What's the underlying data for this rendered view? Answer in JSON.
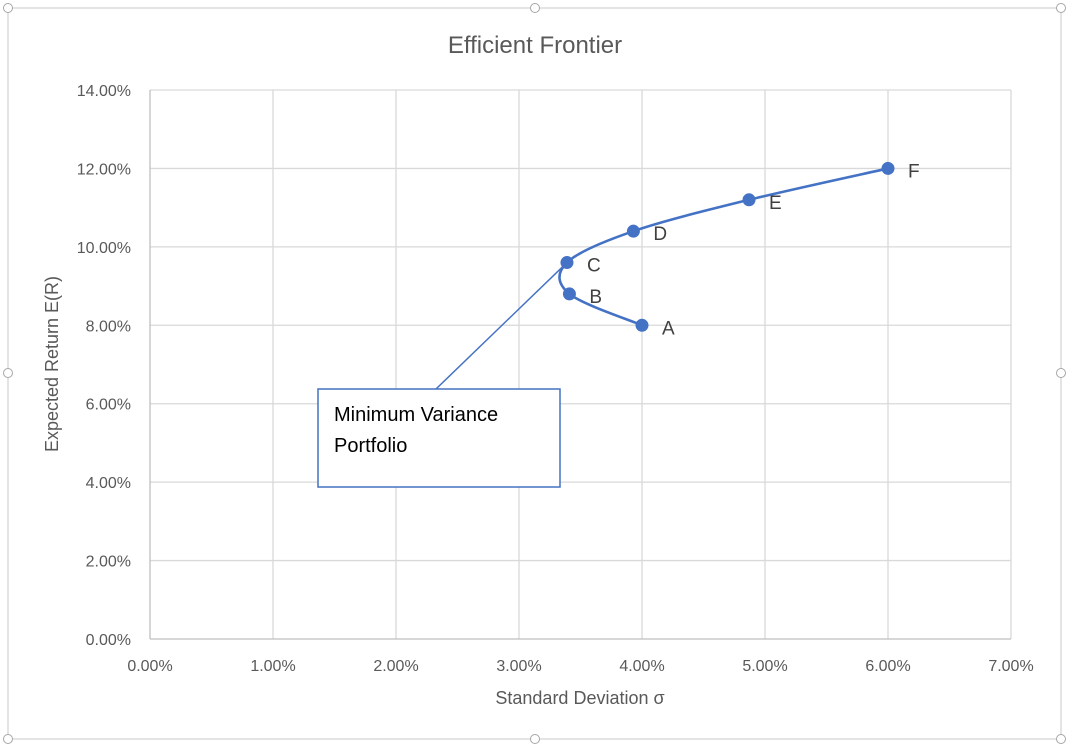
{
  "chart_data": {
    "type": "scatter",
    "title": "Efficient Frontier",
    "xlabel": "Standard Deviation σ",
    "ylabel": "Expected Return E(R)",
    "xlim": [
      0,
      0.07
    ],
    "ylim": [
      0,
      0.14
    ],
    "x_ticks": [
      0,
      0.01,
      0.02,
      0.03,
      0.04,
      0.05,
      0.06,
      0.07
    ],
    "x_tick_labels": [
      "0.00%",
      "1.00%",
      "2.00%",
      "3.00%",
      "4.00%",
      "5.00%",
      "6.00%",
      "7.00%"
    ],
    "y_ticks": [
      0,
      0.02,
      0.04,
      0.06,
      0.08,
      0.1,
      0.12,
      0.14
    ],
    "y_tick_labels": [
      "0.00%",
      "2.00%",
      "4.00%",
      "6.00%",
      "8.00%",
      "10.00%",
      "12.00%",
      "14.00%"
    ],
    "grid": true,
    "line_style": "smoothed",
    "series_color": "#4472C4",
    "grid_color": "#D9D9D9",
    "points": [
      {
        "label": "A",
        "x": 0.04,
        "y": 0.08
      },
      {
        "label": "B",
        "x": 0.0341,
        "y": 0.088
      },
      {
        "label": "C",
        "x": 0.0339,
        "y": 0.096
      },
      {
        "label": "D",
        "x": 0.0393,
        "y": 0.104
      },
      {
        "label": "E",
        "x": 0.0487,
        "y": 0.112
      },
      {
        "label": "F",
        "x": 0.06,
        "y": 0.12
      }
    ],
    "annotation": {
      "text_lines": [
        "Minimum Variance",
        "Portfolio"
      ],
      "points_to": "C"
    }
  }
}
